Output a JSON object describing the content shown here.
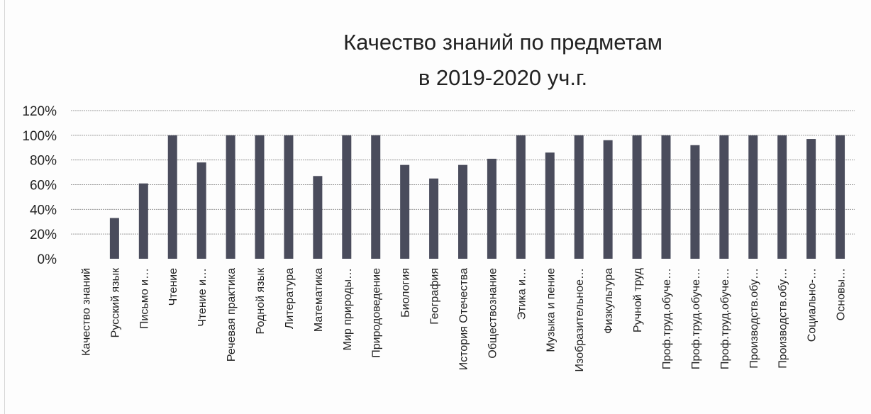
{
  "chart_data": {
    "type": "bar",
    "title_lines": [
      "Качество знаний по предметам",
      "в 2019-2020 уч.г."
    ],
    "categories": [
      "Качество знаний",
      "Русский язык",
      "Письмо и…",
      "Чтение",
      "Чтение и…",
      "Речевая практика",
      "Родной язык",
      "Литература",
      "Математика",
      "Мир природы…",
      "Природоведение",
      "Биология",
      "География",
      "История Отечества",
      "Обществознание",
      "Этика и…",
      "Музыка и пение",
      "Изобразительное…",
      "Физкультура",
      "Ручной труд",
      "Проф.труд.обуче…",
      "Проф.труд.обуче…",
      "Проф.труд.обуче…",
      "Производств.обу…",
      "Производств.обу…",
      "Социально-…",
      "Основы…"
    ],
    "values": [
      0,
      33,
      61,
      100,
      78,
      100,
      100,
      100,
      67,
      100,
      100,
      76,
      65,
      76,
      81,
      100,
      86,
      100,
      96,
      100,
      100,
      92,
      100,
      100,
      100,
      97,
      100
    ],
    "ylim": [
      0,
      120
    ],
    "yticks": [
      "0%",
      "20%",
      "40%",
      "60%",
      "80%",
      "100%",
      "120%"
    ],
    "ytick_values": [
      0,
      20,
      40,
      60,
      80,
      100,
      120
    ],
    "grid": true,
    "bar_color": "#4a4c5c",
    "grid_color": "#9a9a9a",
    "legend": "none"
  }
}
